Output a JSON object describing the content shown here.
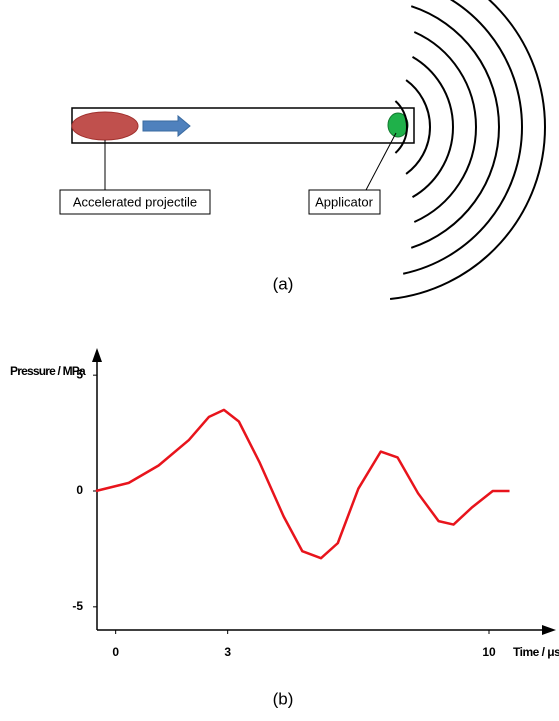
{
  "diagram": {
    "labels": [
      "Accelerated projectile",
      "Applicator"
    ],
    "caption": "(a)"
  },
  "chart_data": {
    "type": "line",
    "caption": "(b)",
    "x_label": "Time / μs",
    "y_label": "Pressure / MPa",
    "x": [
      -0.53,
      0.35,
      1.15,
      1.96,
      2.5,
      2.9,
      3.3,
      3.85,
      4.5,
      5.0,
      5.5,
      5.95,
      6.5,
      7.1,
      7.55,
      8.1,
      8.65,
      9.05,
      9.55,
      10.1,
      10.55
    ],
    "series": [
      {
        "color": "#e8141c",
        "values": [
          0,
          0.35,
          1.1,
          2.2,
          3.2,
          3.5,
          3.0,
          1.25,
          -1.1,
          -2.6,
          -2.9,
          -2.25,
          0.1,
          1.7,
          1.45,
          -0.1,
          -1.3,
          -1.45,
          -0.7,
          0,
          0
        ]
      }
    ],
    "xlim": [
      -0.5,
      11.5
    ],
    "ylim": [
      -6,
      6
    ],
    "xticks": [
      0,
      3,
      10
    ],
    "yticks": [
      -5,
      0,
      5
    ]
  }
}
